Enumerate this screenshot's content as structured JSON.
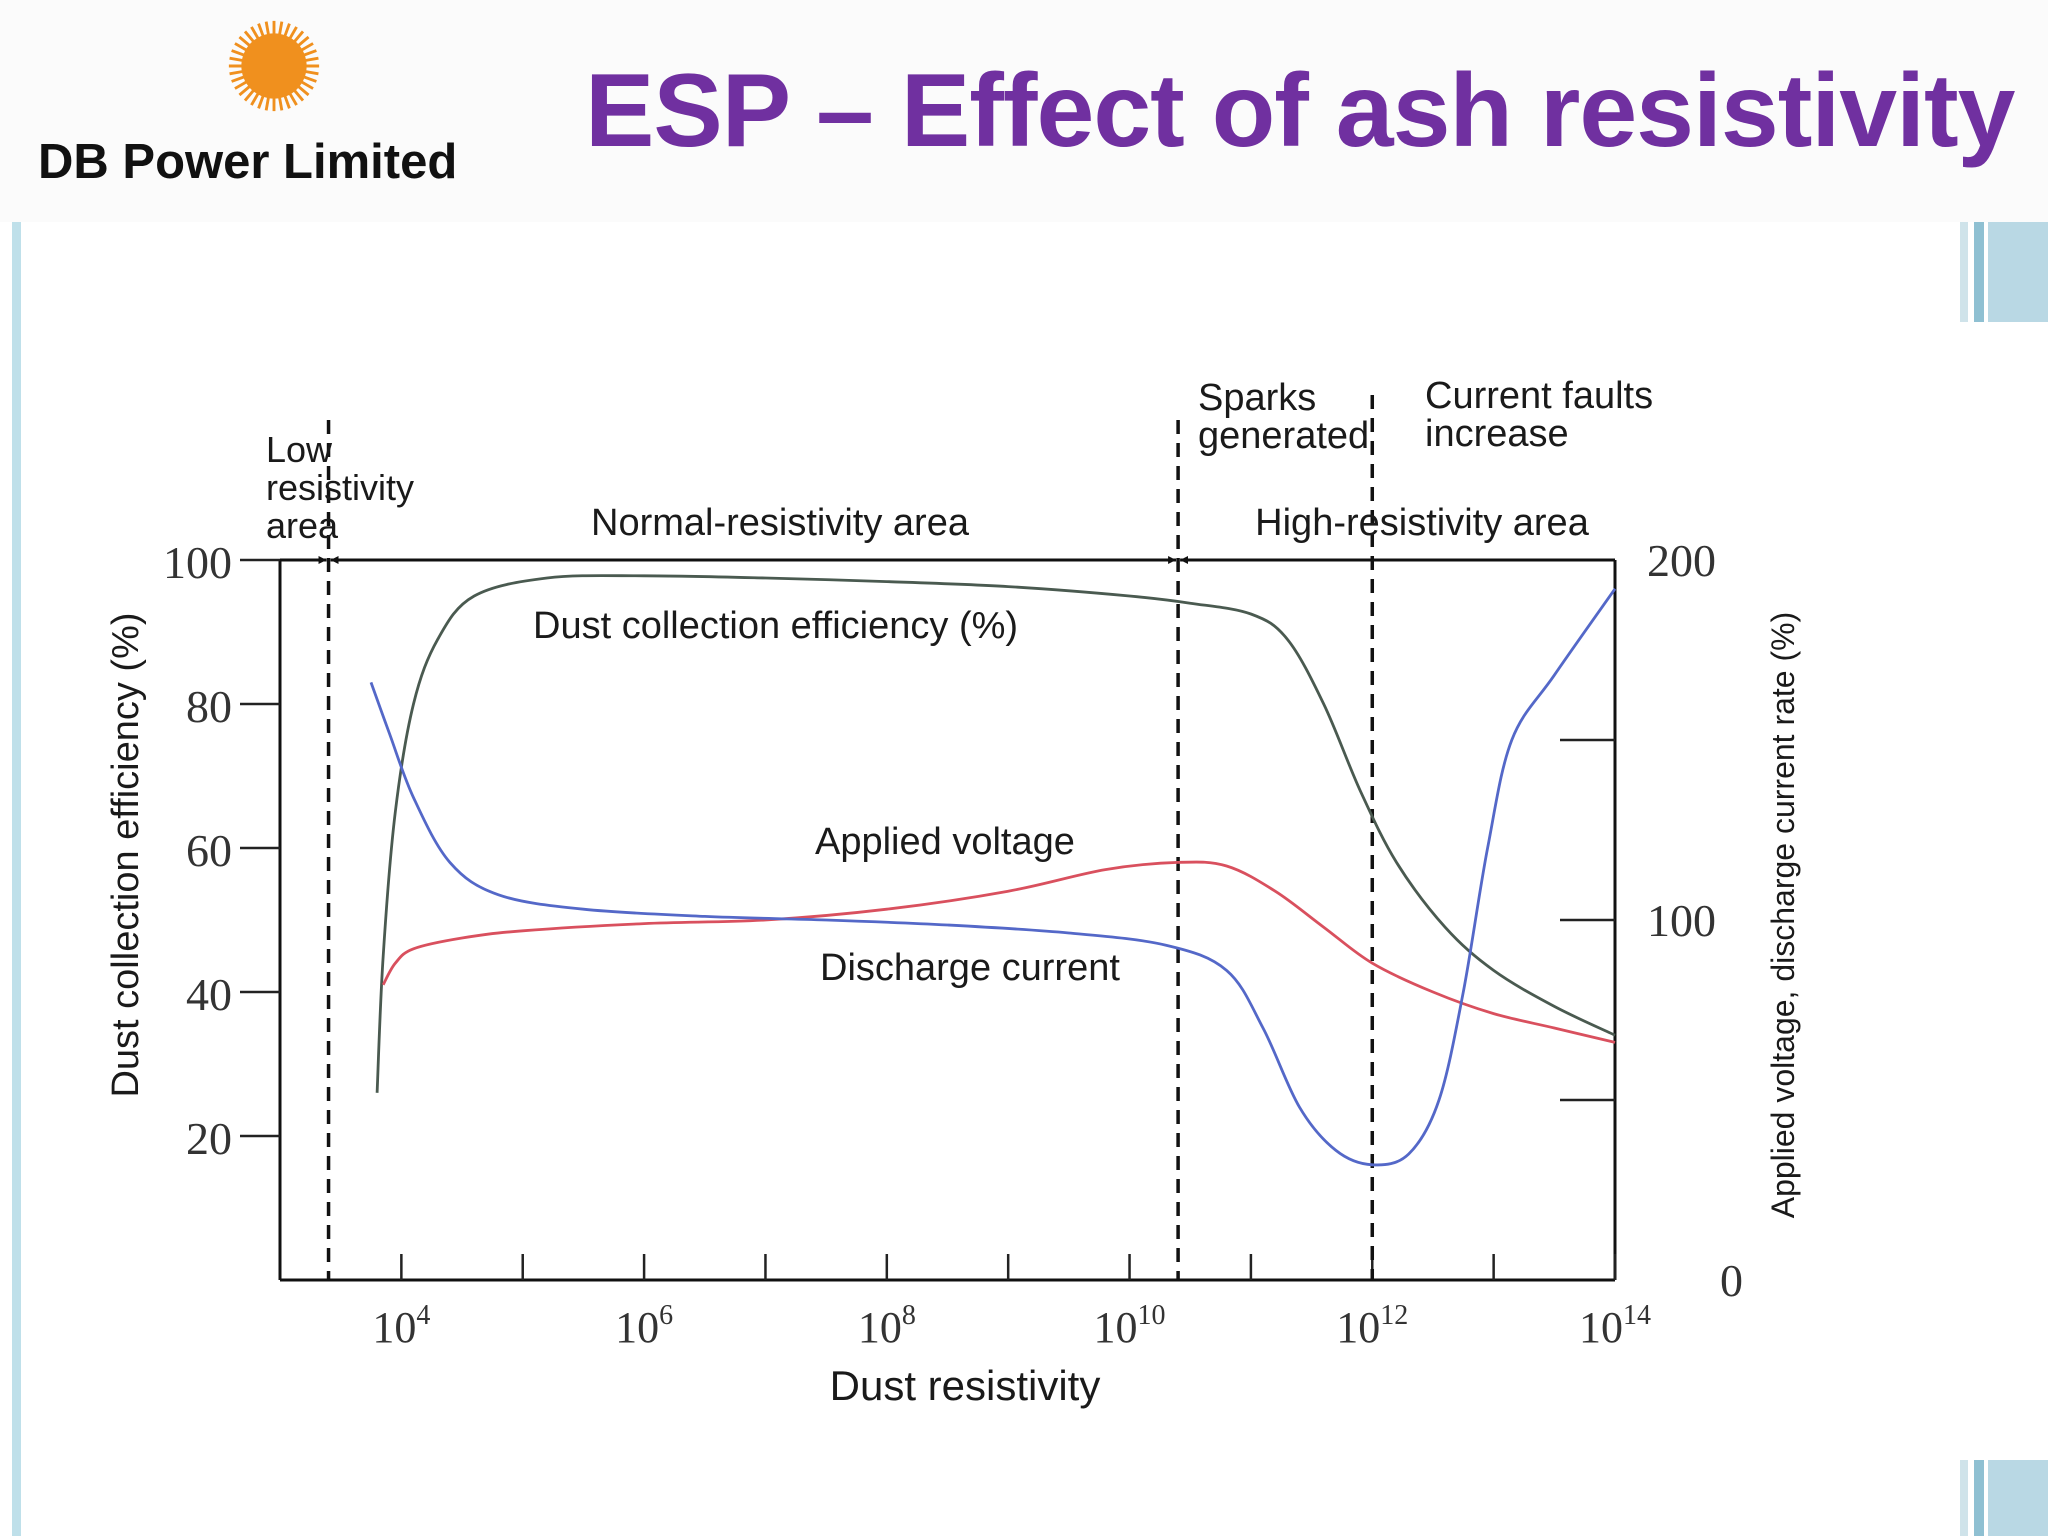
{
  "header": {
    "company_name": "DB Power Limited",
    "title": "ESP – Effect of ash resistivity",
    "logo_icon": "sun-icon",
    "logo_color": "#f0901e",
    "title_color": "#7030a0"
  },
  "chart_data": {
    "type": "line",
    "title": "",
    "xlabel": "Dust resistivity",
    "ylabel_left": "Dust collection efficiency (%)",
    "ylabel_right": "Applied voltage, discharge current rate (%)",
    "x_scale": "log10",
    "xlim_exp": [
      3,
      14
    ],
    "x_tick_exps": [
      4,
      6,
      8,
      10,
      12,
      14
    ],
    "x_tick_labels": [
      {
        "base": "10",
        "exp": "4"
      },
      {
        "base": "10",
        "exp": "6"
      },
      {
        "base": "10",
        "exp": "8"
      },
      {
        "base": "10",
        "exp": "10"
      },
      {
        "base": "10",
        "exp": "12"
      },
      {
        "base": "10",
        "exp": "14"
      }
    ],
    "x_minor_tick_exps": [
      5,
      7,
      9,
      11,
      13
    ],
    "ylim_left": [
      0,
      100
    ],
    "y_ticks_left": [
      20,
      40,
      60,
      80,
      100
    ],
    "ylim_right": [
      0,
      200
    ],
    "y_labels_right": [
      0,
      100,
      200
    ],
    "y_ticks_right": [
      50,
      100,
      150
    ],
    "boundaries_exp": [
      3.4,
      10.4,
      12
    ],
    "region_labels": {
      "low": [
        "Low",
        "resistivity",
        "area"
      ],
      "normal": "Normal-resistivity area",
      "high": "High-resistivity area",
      "sparks": [
        "Sparks",
        "generated"
      ],
      "faults": [
        "Current faults",
        "increase"
      ]
    },
    "series": [
      {
        "name": "Dust collection efficiency (%)",
        "label": "Dust collection efficiency (%)",
        "axis": "left",
        "color": "#4a5a50",
        "points": [
          [
            3.8,
            26
          ],
          [
            3.85,
            45
          ],
          [
            3.95,
            65
          ],
          [
            4.1,
            80
          ],
          [
            4.3,
            89
          ],
          [
            4.6,
            95
          ],
          [
            5.2,
            97.5
          ],
          [
            6,
            97.8
          ],
          [
            7,
            97.5
          ],
          [
            8,
            97
          ],
          [
            9,
            96.3
          ],
          [
            10,
            95
          ],
          [
            10.5,
            94
          ],
          [
            11,
            92.5
          ],
          [
            11.3,
            89
          ],
          [
            11.6,
            80
          ],
          [
            11.9,
            68
          ],
          [
            12.2,
            58
          ],
          [
            12.6,
            49
          ],
          [
            13,
            43
          ],
          [
            13.5,
            38
          ],
          [
            14,
            34
          ]
        ]
      },
      {
        "name": "Applied voltage",
        "label": "Applied voltage",
        "axis": "left",
        "color": "#d9505e",
        "points": [
          [
            3.85,
            41
          ],
          [
            3.95,
            44
          ],
          [
            4.1,
            46
          ],
          [
            4.5,
            47.5
          ],
          [
            5,
            48.5
          ],
          [
            6,
            49.5
          ],
          [
            7,
            50
          ],
          [
            8,
            51.5
          ],
          [
            9,
            54
          ],
          [
            9.8,
            57
          ],
          [
            10.4,
            58
          ],
          [
            10.8,
            57.5
          ],
          [
            11.2,
            54
          ],
          [
            11.6,
            49
          ],
          [
            12,
            44
          ],
          [
            12.5,
            40
          ],
          [
            13,
            37
          ],
          [
            13.5,
            35
          ],
          [
            14,
            33
          ]
        ]
      },
      {
        "name": "Discharge current",
        "label": "Discharge current",
        "axis": "left",
        "color": "#5468c8",
        "points": [
          [
            3.75,
            83
          ],
          [
            3.9,
            76
          ],
          [
            4.1,
            67
          ],
          [
            4.4,
            58
          ],
          [
            4.8,
            53.5
          ],
          [
            5.5,
            51.5
          ],
          [
            6.5,
            50.5
          ],
          [
            7.5,
            50
          ],
          [
            8.5,
            49.3
          ],
          [
            9.5,
            48.2
          ],
          [
            10.3,
            46.5
          ],
          [
            10.8,
            43
          ],
          [
            11.1,
            35
          ],
          [
            11.4,
            24
          ],
          [
            11.7,
            18
          ],
          [
            12,
            16
          ],
          [
            12.3,
            17.5
          ],
          [
            12.55,
            25
          ],
          [
            12.75,
            40
          ],
          [
            12.95,
            60
          ],
          [
            13.15,
            75
          ],
          [
            13.5,
            84
          ],
          [
            14,
            96
          ]
        ]
      }
    ]
  }
}
